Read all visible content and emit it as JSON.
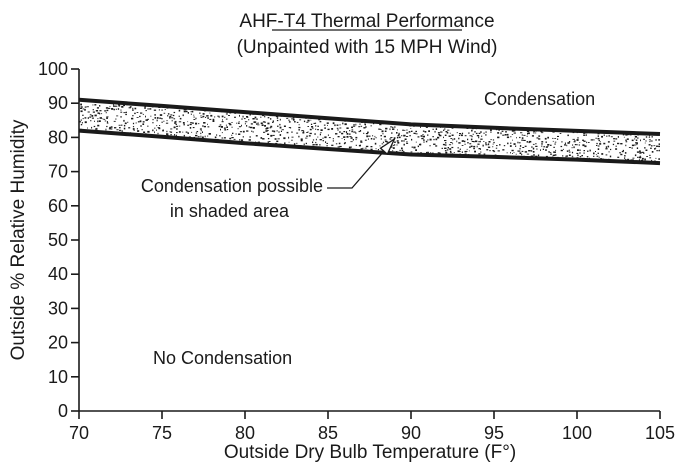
{
  "chart_data": {
    "type": "area",
    "title": "AHF-T4 Thermal Performance",
    "subtitle": "(Unpainted with 15 MPH Wind)",
    "xlabel": "Outside Dry Bulb Temperature (F°)",
    "ylabel": "Outside % Relative Humidity",
    "xlim": [
      70,
      105
    ],
    "ylim": [
      0,
      100
    ],
    "x_ticks": [
      70,
      75,
      80,
      85,
      90,
      95,
      100,
      105
    ],
    "y_ticks": [
      0,
      10,
      20,
      30,
      40,
      50,
      60,
      70,
      80,
      90,
      100
    ],
    "grid": false,
    "upper_boundary": {
      "x": [
        70,
        75,
        80,
        85,
        90,
        95,
        100,
        105
      ],
      "y": [
        91,
        89.2,
        87.4,
        85.6,
        83.8,
        82.8,
        81.9,
        81
      ]
    },
    "lower_boundary": {
      "x": [
        70,
        75,
        80,
        85,
        90,
        95,
        100,
        105
      ],
      "y": [
        82,
        80.2,
        78.3,
        76.6,
        75,
        74.3,
        73.5,
        72.5
      ]
    },
    "region_labels": {
      "above": "Condensation",
      "below": "No Condensation"
    },
    "annotation": {
      "line1": "Condensation possible",
      "line2": "in shaded area",
      "points_to": [
        89,
        79.5
      ]
    },
    "colors": {
      "line": "#1a1a1a",
      "stipple": "#1a1a1a",
      "background": "#ffffff"
    }
  }
}
